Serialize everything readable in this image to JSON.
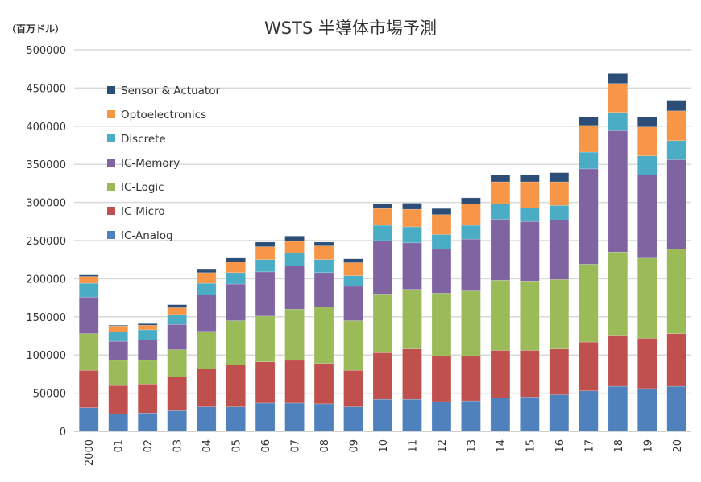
{
  "chart_data": {
    "type": "bar",
    "stacked": true,
    "title": "WSTS 半導体市場予測",
    "unit_label": "（百万ドル）",
    "xlabel": "",
    "ylabel": "（百万ドル）",
    "ylim": [
      0,
      500000
    ],
    "yticks": [
      0,
      50000,
      100000,
      150000,
      200000,
      250000,
      300000,
      350000,
      400000,
      450000,
      500000
    ],
    "grid": true,
    "legend_position": "top-left",
    "categories": [
      "2000",
      "01",
      "02",
      "03",
      "04",
      "05",
      "06",
      "07",
      "08",
      "09",
      "10",
      "11",
      "12",
      "13",
      "14",
      "15",
      "16",
      "17",
      "18",
      "19",
      "20"
    ],
    "series": [
      {
        "name": "IC-Analog",
        "color": "#4f81bd",
        "values": [
          31000,
          23000,
          24000,
          27000,
          32000,
          32000,
          37000,
          37000,
          36000,
          32000,
          42000,
          42000,
          39000,
          40000,
          44000,
          45000,
          48000,
          53000,
          59000,
          56000,
          59000
        ]
      },
      {
        "name": "IC-Micro",
        "color": "#c0504d",
        "values": [
          49000,
          37000,
          38000,
          44000,
          50000,
          55000,
          54000,
          56000,
          53000,
          48000,
          61000,
          66000,
          60000,
          59000,
          62000,
          61000,
          60000,
          64000,
          67000,
          66000,
          69000
        ]
      },
      {
        "name": "IC-Logic",
        "color": "#9bbb59",
        "values": [
          48000,
          33000,
          31000,
          36000,
          49000,
          58000,
          60000,
          67000,
          74000,
          65000,
          77000,
          78000,
          82000,
          85000,
          92000,
          91000,
          91000,
          102000,
          109000,
          105000,
          111000
        ]
      },
      {
        "name": "IC-Memory",
        "color": "#8064a2",
        "values": [
          48000,
          25000,
          27000,
          33000,
          48000,
          48000,
          58000,
          57000,
          45000,
          45000,
          70000,
          61000,
          58000,
          68000,
          80000,
          78000,
          78000,
          125000,
          159000,
          109000,
          117000
        ]
      },
      {
        "name": "Discrete",
        "color": "#4bacc6",
        "values": [
          18000,
          12000,
          13000,
          13000,
          15000,
          15000,
          16000,
          17000,
          17000,
          14000,
          20000,
          21000,
          19000,
          18000,
          20000,
          18000,
          19000,
          22000,
          24000,
          25000,
          25000
        ]
      },
      {
        "name": "Optoelectronics",
        "color": "#f79646",
        "values": [
          9000,
          8000,
          6000,
          9000,
          14000,
          14000,
          17000,
          15000,
          18000,
          17000,
          22000,
          23000,
          26000,
          28000,
          29000,
          34000,
          31000,
          35000,
          38000,
          38000,
          39000
        ]
      },
      {
        "name": "Sensor & Actuator",
        "color": "#2c4d75",
        "values": [
          2000,
          1000,
          2000,
          4000,
          5000,
          5000,
          6000,
          7000,
          5000,
          5000,
          6000,
          8000,
          8000,
          8000,
          9000,
          9000,
          12000,
          11000,
          13000,
          13000,
          14000
        ]
      }
    ]
  }
}
